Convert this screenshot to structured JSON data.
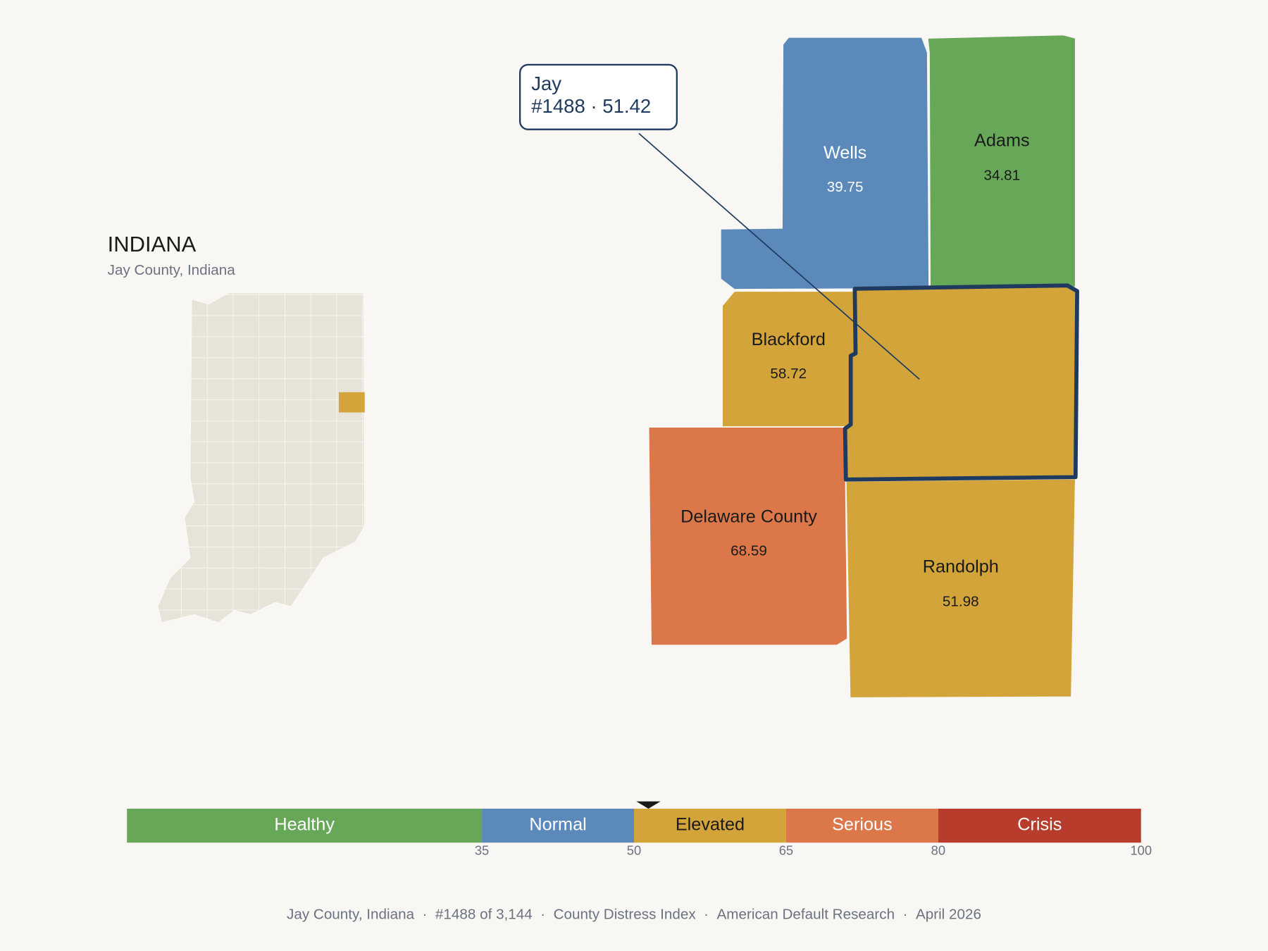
{
  "inset": {
    "title": "INDIANA",
    "subtitle": "Jay County, Indiana"
  },
  "callout": {
    "name": "Jay",
    "detail": "#1488 · 51.42",
    "score": 51.42
  },
  "counties": [
    {
      "name": "Wells",
      "value": 39.75
    },
    {
      "name": "Adams",
      "value": 34.81
    },
    {
      "name": "Blackford",
      "value": 58.72
    },
    {
      "name": "Delaware County",
      "value": 68.59
    },
    {
      "name": "Randolph",
      "value": 51.98
    }
  ],
  "scale": {
    "range": [
      0,
      100
    ],
    "ticks": [
      35,
      50,
      65,
      80,
      100
    ],
    "segments": [
      {
        "label": "Healthy",
        "color": "#67a758"
      },
      {
        "label": "Normal",
        "color": "#5b89b9"
      },
      {
        "label": "Elevated",
        "color": "#d3a43a"
      },
      {
        "label": "Serious",
        "color": "#dc774a"
      },
      {
        "label": "Crisis",
        "color": "#b83c2c"
      }
    ]
  },
  "footer": {
    "separator": "·",
    "items": [
      "Jay County, Indiana",
      "#1488 of 3,144",
      "County Distress Index",
      "American Default Research",
      "April 2026"
    ]
  }
}
